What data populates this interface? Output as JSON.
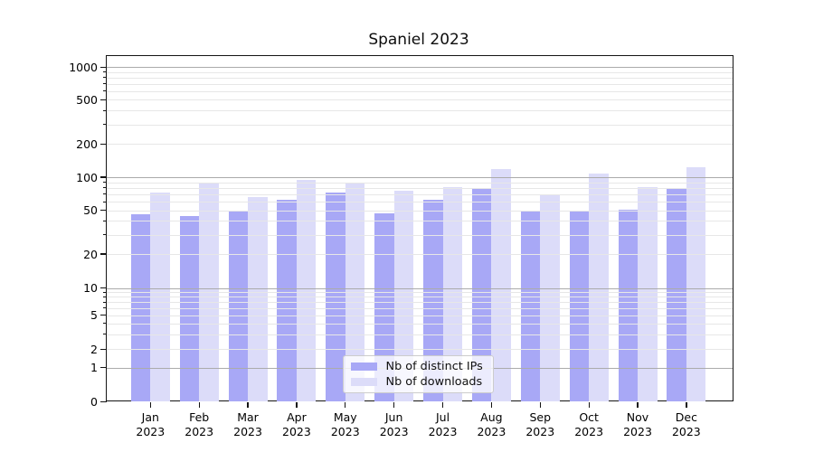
{
  "title": "Spaniel 2023",
  "chart_data": {
    "type": "bar",
    "title": "Spaniel 2023",
    "categories": [
      "Jan",
      "Feb",
      "Mar",
      "Apr",
      "May",
      "Jun",
      "Jul",
      "Aug",
      "Sep",
      "Oct",
      "Nov",
      "Dec"
    ],
    "category_year": "2023",
    "series": [
      {
        "name": "Nb of distinct IPs",
        "color": "#a8a8f6",
        "values": [
          46,
          44,
          50,
          62,
          72,
          47,
          62,
          78,
          49,
          50,
          51,
          78
        ]
      },
      {
        "name": "Nb of downloads",
        "color": "#dcdcf9",
        "values": [
          73,
          88,
          66,
          94,
          87,
          76,
          82,
          118,
          68,
          108,
          82,
          124
        ]
      }
    ],
    "y_ticks": [
      0,
      1,
      2,
      5,
      10,
      20,
      50,
      100,
      200,
      500,
      1000
    ],
    "y_scale": "symlog",
    "ylim": [
      0,
      1300
    ],
    "grid": true,
    "legend_position": "lower center"
  },
  "colors": {
    "major_grid": "#ababab",
    "minor_grid": "#e7e7e7",
    "axis": "#141414",
    "background": "#ffffff"
  }
}
